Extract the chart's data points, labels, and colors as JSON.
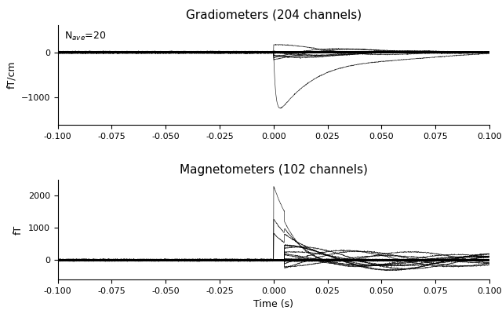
{
  "title_grad": "Gradiometers (204 channels)",
  "title_mag": "Magnetometers (102 channels)",
  "ylabel_grad": "fT/cm",
  "ylabel_mag": "fT",
  "xlabel": "Time (s)",
  "nave_text": "N$_{ave}$=20",
  "xlim": [
    -0.1,
    0.1
  ],
  "ylim_grad": [
    -1600,
    600
  ],
  "ylim_mag": [
    -600,
    2500
  ],
  "xticks": [
    -0.1,
    -0.075,
    -0.05,
    -0.025,
    0.0,
    0.025,
    0.05,
    0.075,
    0.1
  ],
  "xtick_labels": [
    "-0.100",
    "-0.075",
    "-0.050",
    "-0.025",
    "0.000",
    "0.025",
    "0.050",
    "0.075",
    "0.100"
  ],
  "yticks_grad": [
    0,
    -1000
  ],
  "yticks_mag": [
    0,
    1000,
    2000
  ],
  "n_grad_channels": 204,
  "n_mag_channels": 102,
  "seed": 42,
  "line_color": "black",
  "line_width": 0.5,
  "bg_color": "#ffffff"
}
